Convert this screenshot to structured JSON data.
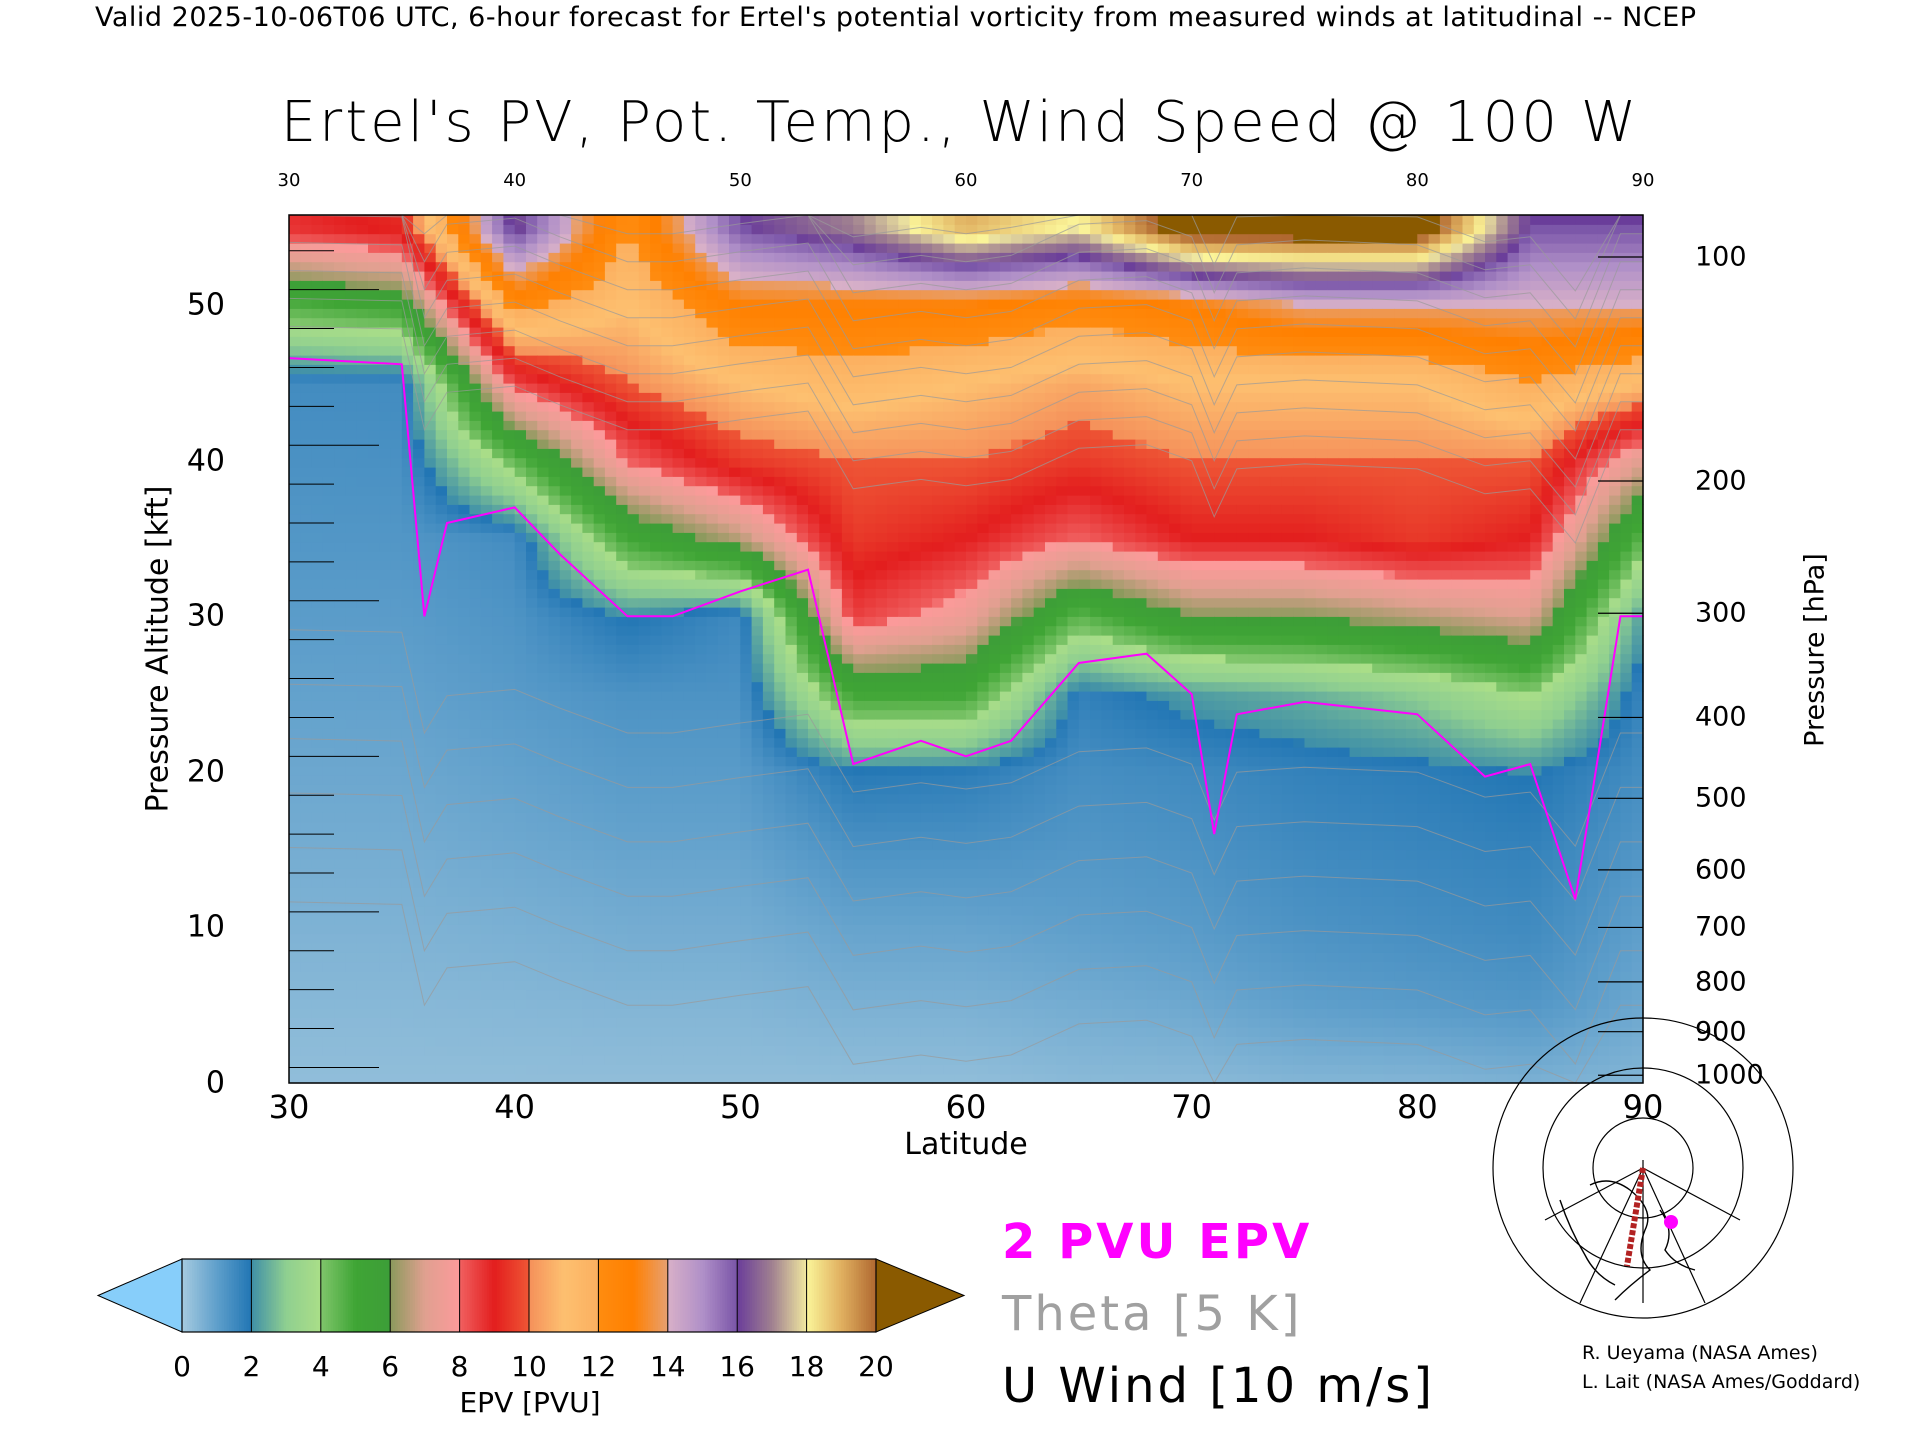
{
  "header": {
    "subtitle": "Valid 2025-10-06T06 UTC, 6-hour forecast for Ertel's potential vorticity from measured winds at latitudinal -- NCEP"
  },
  "chart_data": {
    "type": "heatmap",
    "title": "Ertel's PV, Pot. Temp., Wind Speed @ 100 W",
    "xlabel": "Latitude",
    "ylabel": "Pressure Altitude [kft]",
    "y2label": "Pressure [hPa]",
    "xlim": [
      30,
      90
    ],
    "ylim": [
      0,
      55.8
    ],
    "x_ticks": [
      "30",
      "40",
      "50",
      "60",
      "70",
      "80",
      "90"
    ],
    "y_ticks": [
      "0",
      "10",
      "20",
      "30",
      "40",
      "50"
    ],
    "pressure_ticks": [
      {
        "label": "100",
        "kft": 53.1
      },
      {
        "label": "200",
        "kft": 38.7
      },
      {
        "label": "300",
        "kft": 30.2
      },
      {
        "label": "400",
        "kft": 23.5
      },
      {
        "label": "500",
        "kft": 18.3
      },
      {
        "label": "600",
        "kft": 13.7
      },
      {
        "label": "700",
        "kft": 10.0
      },
      {
        "label": "800",
        "kft": 6.5
      },
      {
        "label": "900",
        "kft": 3.3
      },
      {
        "label": "1000",
        "kft": 0.5
      }
    ],
    "grid_lat": [
      30,
      35,
      40,
      45,
      50,
      55,
      60,
      65,
      70,
      75,
      80,
      85,
      90
    ],
    "grid_alt_kft": [
      0,
      5,
      10,
      15,
      20,
      25,
      30,
      35,
      40,
      45,
      50,
      55
    ],
    "epv_pvu": [
      [
        0.3,
        0.3,
        0.3,
        0.3,
        0.3,
        0.3,
        0.3,
        0.4,
        0.4,
        0.5,
        0.5,
        0.6,
        0.5
      ],
      [
        0.43,
        0.43,
        0.46,
        0.5,
        0.5,
        0.6,
        0.6,
        0.7,
        0.8,
        1.0,
        1.1,
        1.2,
        0.8
      ],
      [
        0.56,
        0.56,
        0.62,
        0.7,
        0.7,
        0.9,
        0.9,
        1.0,
        1.1,
        1.3,
        1.4,
        1.5,
        1.0
      ],
      [
        0.69,
        0.69,
        0.79,
        0.9,
        0.9,
        1.3,
        1.3,
        1.2,
        1.3,
        1.5,
        1.6,
        1.7,
        1.2
      ],
      [
        0.82,
        0.82,
        0.95,
        1.1,
        1.1,
        1.9,
        1.8,
        1.4,
        1.5,
        1.7,
        1.8,
        2.0,
        1.4
      ],
      [
        0.94,
        0.95,
        1.11,
        1.3,
        1.3,
        5.0,
        5.0,
        1.7,
        2.2,
        2.5,
        3.0,
        4.0,
        1.6
      ],
      [
        1.07,
        1.08,
        1.27,
        2.0,
        1.5,
        8.5,
        7.5,
        4.5,
        6.0,
        6.0,
        6.5,
        7.0,
        2.2
      ],
      [
        1.2,
        1.21,
        1.43,
        5.0,
        6.5,
        9.5,
        9.0,
        8.0,
        9.0,
        9.0,
        9.5,
        9.0,
        4.5
      ],
      [
        1.33,
        1.34,
        4.4,
        8.0,
        9.5,
        10.0,
        10.0,
        9.5,
        10.0,
        10.0,
        10.0,
        10.0,
        7.0
      ],
      [
        1.46,
        1.47,
        8.4,
        10.0,
        11.0,
        11.5,
        11.0,
        10.5,
        11.0,
        11.0,
        11.0,
        12.0,
        11.0
      ],
      [
        4.7,
        5.2,
        12.4,
        11.0,
        13.0,
        13.0,
        13.0,
        12.5,
        13.0,
        14.0,
        14.0,
        14.0,
        14.0
      ],
      [
        8.7,
        9.2,
        16.4,
        12.0,
        16.0,
        17.0,
        19.0,
        18.0,
        21.0,
        21.0,
        21.0,
        16.0,
        16.0
      ]
    ],
    "pvu2_contour": {
      "label": "2 PVU EPV",
      "lat": [
        30,
        35,
        36,
        37,
        40,
        42,
        45,
        47,
        50,
        53,
        55,
        58,
        60,
        62,
        65,
        68,
        70,
        71,
        72,
        75,
        80,
        83,
        85,
        87,
        89,
        90
      ],
      "alt_kft": [
        46.6,
        46.2,
        30,
        36,
        37,
        34,
        30,
        30,
        31.6,
        33,
        20.5,
        22,
        21,
        22,
        27,
        27.6,
        25,
        16,
        23.7,
        24.5,
        23.7,
        19.7,
        20.5,
        11.8,
        30,
        30
      ]
    },
    "colorbar": {
      "label": "EPV [PVU]",
      "ticks": [
        "0",
        "2",
        "4",
        "6",
        "8",
        "10",
        "12",
        "14",
        "16",
        "18",
        "20"
      ],
      "under_color": "#87cefa",
      "over_color": "#8a5a00"
    },
    "legend": {
      "pv_label": "2 PVU EPV",
      "theta_label": "Theta [5 K]",
      "wind_label": "U Wind [10 m/s]",
      "pv_color": "#ff00ff",
      "theta_color": "#a0a0a0",
      "wind_color": "#000000"
    }
  },
  "credits": {
    "line1": "R. Ueyama (NASA Ames)",
    "line2": "L. Lait (NASA Ames/Goddard)"
  }
}
